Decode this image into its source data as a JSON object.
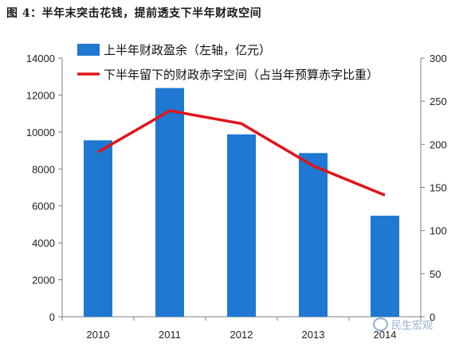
{
  "title": "图 4：半年末突击花钱，提前透支下半年财政空间",
  "watermark": "民生宏观",
  "chart_data": {
    "type": "bar",
    "categories": [
      "2010",
      "2011",
      "2012",
      "2013",
      "2014"
    ],
    "series": [
      {
        "name": "上半年财政盈余（左轴，亿元）",
        "type": "bar",
        "axis": "left",
        "color": "#1f78d1",
        "values": [
          9550,
          12380,
          9870,
          8860,
          5470
        ]
      },
      {
        "name": "下半年留下的财政赤字空间（占当年预算赤字比重）",
        "type": "line",
        "axis": "right",
        "color": "#e0141b",
        "values": [
          191,
          239,
          224,
          175,
          141
        ]
      }
    ],
    "left_axis": {
      "min": 0,
      "max": 14000,
      "ticks": [
        0,
        2000,
        4000,
        6000,
        8000,
        10000,
        12000,
        14000
      ]
    },
    "right_axis": {
      "min": 0,
      "max": 300,
      "ticks": [
        0,
        50,
        100,
        150,
        200,
        250,
        300
      ]
    },
    "grid": false,
    "legend_position": "top"
  }
}
